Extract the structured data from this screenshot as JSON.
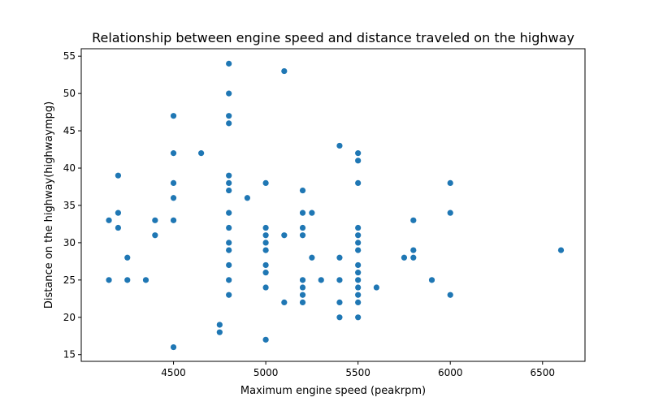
{
  "chart_data": {
    "type": "scatter",
    "title": "Relationship between engine speed and distance traveled on the highway",
    "xlabel": "Maximum engine speed (peakrpm)",
    "ylabel": "Distance on the highway(highwaympg)",
    "xlim": [
      4000,
      6730
    ],
    "ylim": [
      14.1,
      56
    ],
    "xticks": [
      4500,
      5000,
      5500,
      6000,
      6500
    ],
    "yticks": [
      15,
      20,
      25,
      30,
      35,
      40,
      45,
      50,
      55
    ],
    "grid": false,
    "color": "#1f77b4",
    "points": [
      [
        4150,
        33
      ],
      [
        4150,
        25
      ],
      [
        4200,
        39
      ],
      [
        4200,
        34
      ],
      [
        4200,
        32
      ],
      [
        4250,
        28
      ],
      [
        4250,
        25
      ],
      [
        4350,
        25
      ],
      [
        4400,
        33
      ],
      [
        4400,
        31
      ],
      [
        4500,
        47
      ],
      [
        4500,
        42
      ],
      [
        4500,
        38
      ],
      [
        4500,
        36
      ],
      [
        4500,
        33
      ],
      [
        4500,
        16
      ],
      [
        4650,
        42
      ],
      [
        4750,
        19
      ],
      [
        4750,
        18
      ],
      [
        4800,
        54
      ],
      [
        4800,
        50
      ],
      [
        4800,
        47
      ],
      [
        4800,
        46
      ],
      [
        4800,
        39
      ],
      [
        4800,
        38
      ],
      [
        4800,
        37
      ],
      [
        4800,
        34
      ],
      [
        4800,
        32
      ],
      [
        4800,
        30
      ],
      [
        4800,
        29
      ],
      [
        4800,
        27
      ],
      [
        4800,
        25
      ],
      [
        4800,
        23
      ],
      [
        4900,
        36
      ],
      [
        5000,
        38
      ],
      [
        5000,
        32
      ],
      [
        5000,
        31
      ],
      [
        5000,
        30
      ],
      [
        5000,
        29
      ],
      [
        5000,
        27
      ],
      [
        5000,
        26
      ],
      [
        5000,
        24
      ],
      [
        5000,
        17
      ],
      [
        5100,
        53
      ],
      [
        5100,
        31
      ],
      [
        5100,
        22
      ],
      [
        5200,
        37
      ],
      [
        5200,
        34
      ],
      [
        5200,
        32
      ],
      [
        5200,
        31
      ],
      [
        5200,
        25
      ],
      [
        5200,
        24
      ],
      [
        5200,
        23
      ],
      [
        5200,
        22
      ],
      [
        5250,
        34
      ],
      [
        5250,
        28
      ],
      [
        5300,
        25
      ],
      [
        5400,
        43
      ],
      [
        5400,
        28
      ],
      [
        5400,
        25
      ],
      [
        5400,
        22
      ],
      [
        5400,
        20
      ],
      [
        5500,
        42
      ],
      [
        5500,
        41
      ],
      [
        5500,
        38
      ],
      [
        5500,
        32
      ],
      [
        5500,
        31
      ],
      [
        5500,
        30
      ],
      [
        5500,
        29
      ],
      [
        5500,
        27
      ],
      [
        5500,
        26
      ],
      [
        5500,
        25
      ],
      [
        5500,
        24
      ],
      [
        5500,
        23
      ],
      [
        5500,
        22
      ],
      [
        5500,
        20
      ],
      [
        5600,
        24
      ],
      [
        5750,
        28
      ],
      [
        5800,
        33
      ],
      [
        5800,
        29
      ],
      [
        5800,
        28
      ],
      [
        5900,
        25
      ],
      [
        6000,
        38
      ],
      [
        6000,
        34
      ],
      [
        6000,
        23
      ],
      [
        6600,
        29
      ]
    ]
  }
}
